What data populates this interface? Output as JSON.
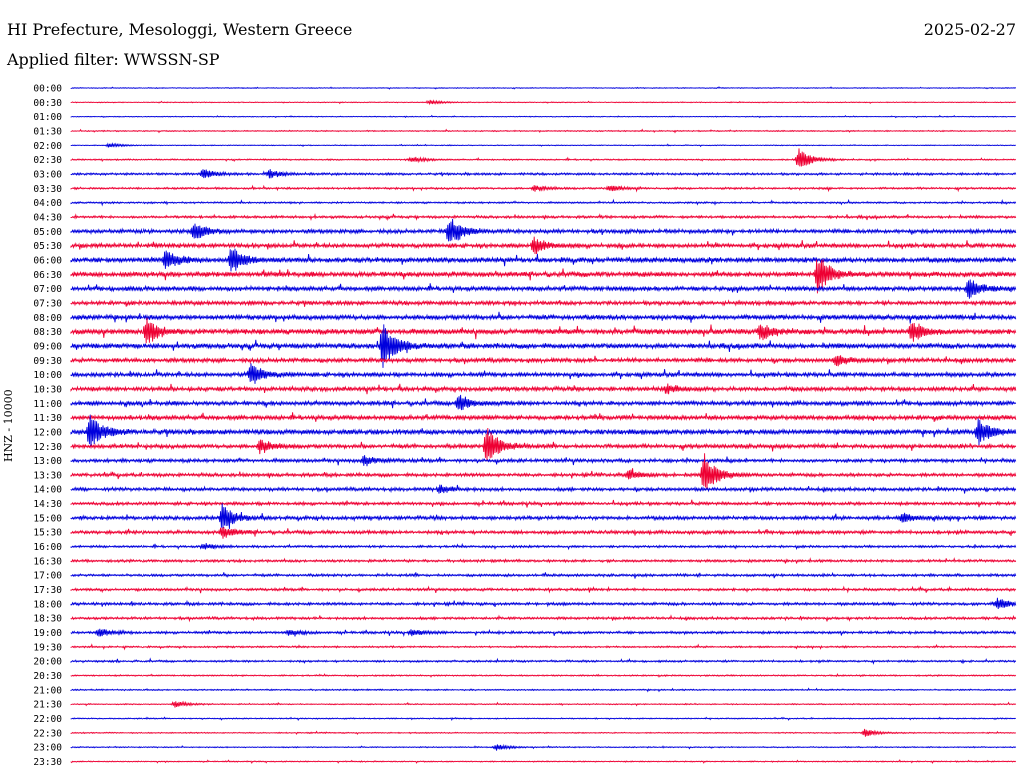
{
  "header": {
    "title": "HI Prefecture, Mesologgi, Western Greece",
    "date": "2025-02-27",
    "filter_text": "Applied filter: WWSSN-SP"
  },
  "chart_data": {
    "type": "line",
    "title": "HI Prefecture, Mesologgi, Western Greece",
    "ylabel": "HNZ - 10000",
    "row_labels": [
      "00:00",
      "00:30",
      "01:00",
      "01:30",
      "02:00",
      "02:30",
      "03:00",
      "03:30",
      "04:00",
      "04:30",
      "05:00",
      "05:30",
      "06:00",
      "06:30",
      "07:00",
      "07:30",
      "08:00",
      "08:30",
      "09:00",
      "09:30",
      "10:00",
      "10:30",
      "11:00",
      "11:30",
      "12:00",
      "12:30",
      "13:00",
      "13:30",
      "14:00",
      "14:30",
      "15:00",
      "15:30",
      "16:00",
      "16:30",
      "17:00",
      "17:30",
      "18:00",
      "18:30",
      "19:00",
      "19:30",
      "20:00",
      "20:30",
      "21:00",
      "21:30",
      "22:00",
      "22:30",
      "23:00",
      "23:30"
    ],
    "colors": [
      "#0000dd",
      "#ee0033"
    ],
    "noise_level": [
      0.3,
      0.3,
      0.3,
      0.4,
      0.3,
      0.5,
      0.8,
      0.7,
      0.6,
      0.9,
      1.4,
      1.5,
      1.8,
      1.8,
      1.6,
      1.4,
      1.7,
      1.9,
      1.8,
      1.5,
      1.5,
      1.5,
      1.5,
      1.6,
      1.8,
      1.4,
      1.2,
      1.2,
      1.2,
      1.1,
      1.3,
      1.2,
      0.8,
      0.9,
      0.9,
      0.9,
      1.0,
      0.9,
      0.9,
      0.6,
      0.7,
      0.5,
      0.5,
      0.4,
      0.4,
      0.4,
      0.4,
      0.4
    ],
    "events": [
      {
        "row": 1,
        "t": 0.38,
        "amp": 2
      },
      {
        "row": 4,
        "t": 0.04,
        "amp": 2
      },
      {
        "row": 5,
        "t": 0.36,
        "amp": 3
      },
      {
        "row": 5,
        "t": 0.77,
        "amp": 12
      },
      {
        "row": 6,
        "t": 0.14,
        "amp": 5
      },
      {
        "row": 6,
        "t": 0.21,
        "amp": 4
      },
      {
        "row": 7,
        "t": 0.49,
        "amp": 3
      },
      {
        "row": 7,
        "t": 0.57,
        "amp": 3
      },
      {
        "row": 10,
        "t": 0.13,
        "amp": 10
      },
      {
        "row": 10,
        "t": 0.4,
        "amp": 16
      },
      {
        "row": 11,
        "t": 0.49,
        "amp": 8
      },
      {
        "row": 12,
        "t": 0.1,
        "amp": 10
      },
      {
        "row": 12,
        "t": 0.17,
        "amp": 13
      },
      {
        "row": 13,
        "t": 0.79,
        "amp": 20
      },
      {
        "row": 14,
        "t": 0.95,
        "amp": 10
      },
      {
        "row": 17,
        "t": 0.08,
        "amp": 12
      },
      {
        "row": 17,
        "t": 0.73,
        "amp": 8
      },
      {
        "row": 17,
        "t": 0.89,
        "amp": 11
      },
      {
        "row": 18,
        "t": 0.33,
        "amp": 24
      },
      {
        "row": 19,
        "t": 0.81,
        "amp": 5
      },
      {
        "row": 20,
        "t": 0.19,
        "amp": 11
      },
      {
        "row": 21,
        "t": 0.63,
        "amp": 4
      },
      {
        "row": 22,
        "t": 0.41,
        "amp": 8
      },
      {
        "row": 24,
        "t": 0.02,
        "amp": 18
      },
      {
        "row": 24,
        "t": 0.96,
        "amp": 13
      },
      {
        "row": 25,
        "t": 0.2,
        "amp": 7
      },
      {
        "row": 25,
        "t": 0.44,
        "amp": 22
      },
      {
        "row": 26,
        "t": 0.31,
        "amp": 5
      },
      {
        "row": 27,
        "t": 0.67,
        "amp": 22
      },
      {
        "row": 27,
        "t": 0.59,
        "amp": 5
      },
      {
        "row": 28,
        "t": 0.39,
        "amp": 4
      },
      {
        "row": 30,
        "t": 0.16,
        "amp": 13
      },
      {
        "row": 30,
        "t": 0.88,
        "amp": 5
      },
      {
        "row": 31,
        "t": 0.16,
        "amp": 6
      },
      {
        "row": 32,
        "t": 0.14,
        "amp": 3
      },
      {
        "row": 36,
        "t": 0.98,
        "amp": 6
      },
      {
        "row": 38,
        "t": 0.03,
        "amp": 4
      },
      {
        "row": 38,
        "t": 0.23,
        "amp": 3
      },
      {
        "row": 38,
        "t": 0.36,
        "amp": 3
      },
      {
        "row": 43,
        "t": 0.11,
        "amp": 3
      },
      {
        "row": 45,
        "t": 0.84,
        "amp": 4
      },
      {
        "row": 46,
        "t": 0.45,
        "amp": 3
      }
    ]
  }
}
